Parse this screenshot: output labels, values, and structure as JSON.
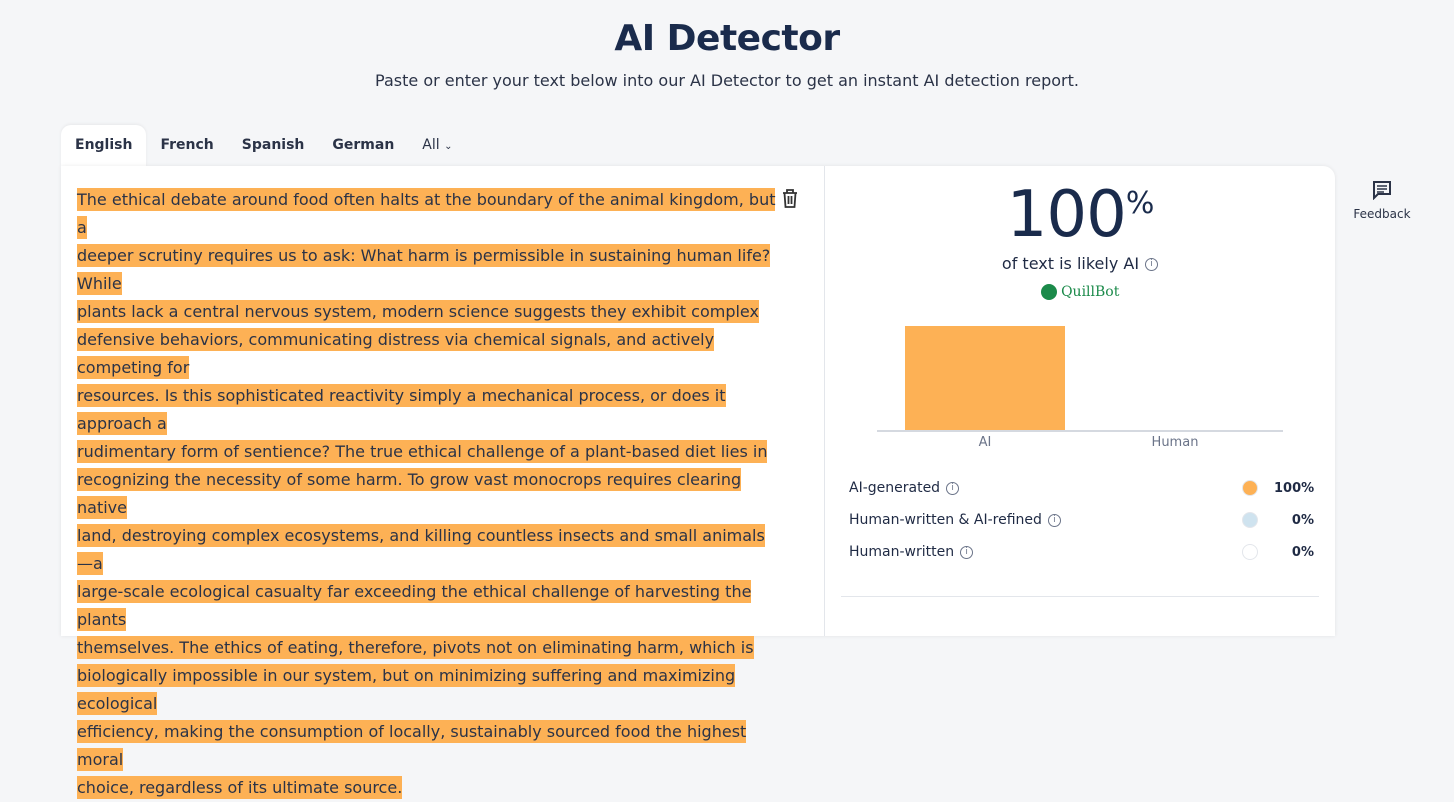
{
  "header": {
    "title": "AI Detector",
    "subtitle": "Paste or enter your text below into our AI Detector to get an instant AI detection report."
  },
  "tabs": [
    {
      "label": "English",
      "active": true
    },
    {
      "label": "French"
    },
    {
      "label": "Spanish"
    },
    {
      "label": "German"
    },
    {
      "label": "All"
    }
  ],
  "editor": {
    "lines": [
      "The ethical debate around food often halts at the boundary of the animal kingdom, but a",
      "deeper scrutiny requires us to ask: What harm is permissible in sustaining human life? While",
      "plants lack a central nervous system, modern science suggests they exhibit complex",
      "defensive behaviors, communicating distress via chemical signals, and actively competing for",
      "resources. Is this sophisticated reactivity simply a mechanical process, or does it approach a",
      "rudimentary form of sentience? The true ethical challenge of a plant-based diet lies in",
      "recognizing the necessity of some harm. To grow vast monocrops requires clearing native",
      "land, destroying complex ecosystems, and killing countless insects and small animals—a",
      "large-scale ecological casualty far exceeding the ethical challenge of harvesting the plants",
      "themselves. The ethics of eating, therefore, pivots not on eliminating harm, which is",
      "biologically impossible in our system, but on minimizing suffering and maximizing ecological",
      "efficiency, making the consumption of locally, sustainably sourced food the highest moral",
      "choice, regardless of its ultimate source."
    ],
    "highlight_color": "#fdb155",
    "delete_icon": "trash-icon"
  },
  "result": {
    "score": "100",
    "unit": "%",
    "caption": "of text is likely AI",
    "brand": "QuillBot"
  },
  "chart_data": {
    "type": "bar",
    "categories": [
      "AI",
      "Human"
    ],
    "values": [
      100,
      0
    ],
    "colors": [
      "#fdb155",
      "#cfe3ef"
    ]
  },
  "legend": [
    {
      "label": "AI-generated",
      "value": "100%",
      "color": "#fdb155"
    },
    {
      "label": "Human-written & AI-refined",
      "value": "0%",
      "color": "#cfe3ef"
    },
    {
      "label": "Human-written",
      "value": "0%",
      "color": "#ffffff"
    }
  ],
  "feedback": {
    "label": "Feedback"
  }
}
